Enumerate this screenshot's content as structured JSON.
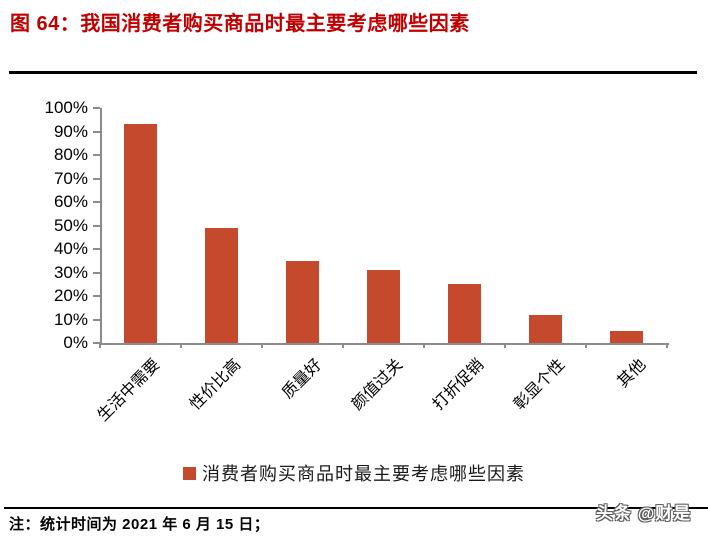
{
  "header": {
    "title": "图 64：我国消费者购买商品时最主要考虑哪些因素"
  },
  "footer": {
    "note": "注：统计时间为 2021 年 6 月 15 日；",
    "watermark": "头条 @财是"
  },
  "colors": {
    "title": "#C00000",
    "bar": "#C5492C",
    "axis": "#8C8C8C",
    "rule": "#000000"
  },
  "chart_data": {
    "type": "bar",
    "title": "图 64：我国消费者购买商品时最主要考虑哪些因素",
    "categories": [
      "生活中需要",
      "性价比高",
      "质量好",
      "颜值过关",
      "打折促销",
      "彰显个性",
      "其他"
    ],
    "values": [
      93,
      49,
      35,
      31,
      25,
      12,
      5
    ],
    "unit": "%",
    "xlabel": "",
    "ylabel": "",
    "ylim": [
      0,
      100
    ],
    "ytick_step": 10,
    "ytick_labels": [
      "100%",
      "90%",
      "80%",
      "70%",
      "60%",
      "50%",
      "40%",
      "30%",
      "20%",
      "10%",
      "0%"
    ],
    "legend": [
      "消费者购买商品时最主要考虑哪些因素"
    ],
    "legend_position": "bottom",
    "grid": false,
    "bar_color": "#C5492C"
  }
}
